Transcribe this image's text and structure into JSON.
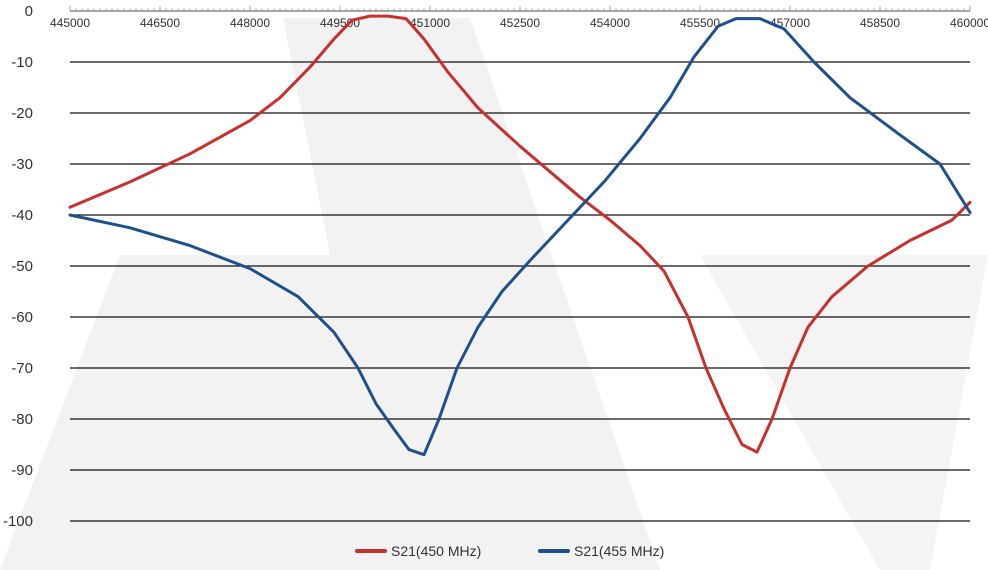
{
  "chart_data": {
    "type": "line",
    "title": "",
    "xlabel": "",
    "ylabel": "",
    "xlim": [
      445000,
      460000
    ],
    "ylim": [
      -100,
      0
    ],
    "x_ticks": [
      "445000",
      "446500",
      "448000",
      "449500",
      "451000",
      "452500",
      "454000",
      "455500",
      "457000",
      "458500",
      "460000"
    ],
    "y_ticks": [
      "0",
      "-10",
      "-20",
      "-30",
      "-40",
      "-50",
      "-60",
      "-70",
      "-80",
      "-90",
      "-100"
    ],
    "grid": "horizontal",
    "legend_position": "bottom-center",
    "series": [
      {
        "name": "S21(450 MHz)",
        "color": "#c8302b",
        "points": [
          [
            445000,
            -38.5
          ],
          [
            446000,
            -33.5
          ],
          [
            447000,
            -28
          ],
          [
            448000,
            -21.5
          ],
          [
            448500,
            -17
          ],
          [
            449000,
            -11
          ],
          [
            449400,
            -5.5
          ],
          [
            449700,
            -1.8
          ],
          [
            450000,
            -1.0
          ],
          [
            450300,
            -1.0
          ],
          [
            450600,
            -1.5
          ],
          [
            450900,
            -5.5
          ],
          [
            451300,
            -12
          ],
          [
            451800,
            -19
          ],
          [
            452500,
            -26.5
          ],
          [
            453000,
            -31.5
          ],
          [
            453500,
            -36.5
          ],
          [
            454000,
            -41
          ],
          [
            454500,
            -46
          ],
          [
            454900,
            -51
          ],
          [
            455300,
            -60
          ],
          [
            455600,
            -70
          ],
          [
            455900,
            -78
          ],
          [
            456200,
            -85
          ],
          [
            456450,
            -86.5
          ],
          [
            456700,
            -80
          ],
          [
            457000,
            -70
          ],
          [
            457300,
            -62
          ],
          [
            457700,
            -56
          ],
          [
            458300,
            -50
          ],
          [
            459000,
            -45
          ],
          [
            459700,
            -41
          ],
          [
            460000,
            -37.5
          ]
        ]
      },
      {
        "name": "S21(455 MHz)",
        "color": "#1e4f8f",
        "points": [
          [
            445000,
            -40
          ],
          [
            446000,
            -42.5
          ],
          [
            447000,
            -46
          ],
          [
            448000,
            -50.5
          ],
          [
            448800,
            -56
          ],
          [
            449400,
            -63
          ],
          [
            449800,
            -70
          ],
          [
            450100,
            -77
          ],
          [
            450400,
            -82
          ],
          [
            450650,
            -86
          ],
          [
            450900,
            -87
          ],
          [
            451150,
            -80
          ],
          [
            451450,
            -70
          ],
          [
            451800,
            -62
          ],
          [
            452200,
            -55
          ],
          [
            452700,
            -48.5
          ],
          [
            453300,
            -41
          ],
          [
            453900,
            -33.5
          ],
          [
            454500,
            -25
          ],
          [
            455000,
            -17
          ],
          [
            455400,
            -9
          ],
          [
            455800,
            -3
          ],
          [
            456100,
            -1.5
          ],
          [
            456500,
            -1.5
          ],
          [
            456900,
            -3.5
          ],
          [
            457400,
            -10
          ],
          [
            458000,
            -17
          ],
          [
            458800,
            -24
          ],
          [
            459500,
            -30
          ],
          [
            460000,
            -39.5
          ]
        ]
      }
    ]
  }
}
